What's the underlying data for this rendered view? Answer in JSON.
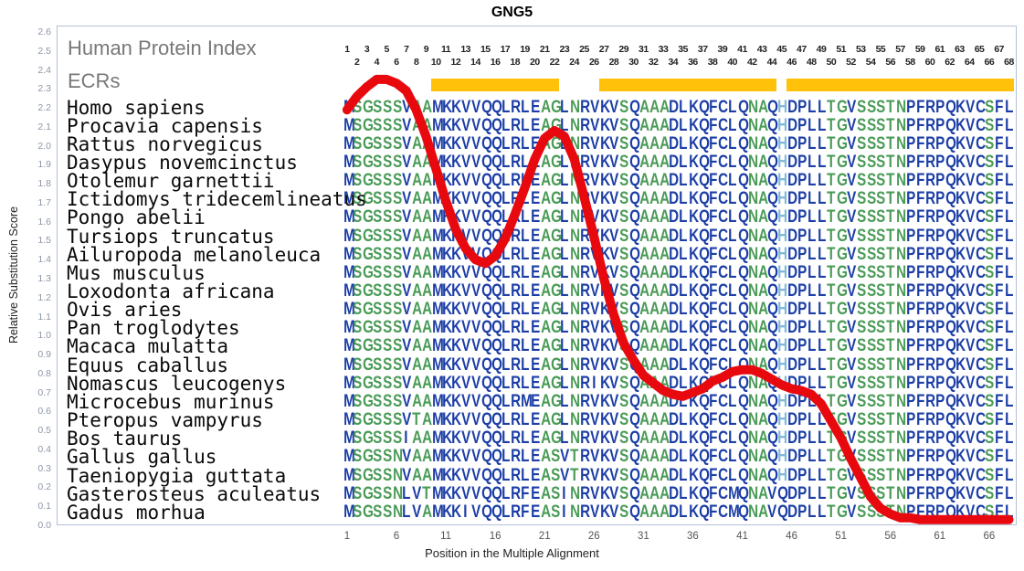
{
  "title": "GNG5",
  "axes": {
    "y_label": "Relative Substitution Score",
    "x_label": "Position in the Multiple Alignment",
    "y_min": 0.0,
    "y_max": 2.6,
    "y_tick_step": 0.1,
    "x_ticks": [
      1,
      6,
      11,
      16,
      21,
      26,
      31,
      36,
      41,
      46,
      51,
      56,
      61,
      66
    ]
  },
  "legend": {
    "hpi_label": "Human Protein Index",
    "ecr_label": "ECRs"
  },
  "ecr_regions": [
    [
      10,
      22
    ],
    [
      27,
      44
    ],
    [
      46,
      68
    ]
  ],
  "alignment": {
    "num_positions": 68,
    "species": [
      {
        "name": "Homo sapiens",
        "sequence": "MSGSSSVAAMKKVVQQLRLEAGLNRVKVSQAAADLKQFCLQNAQHDPLLTGVSSSTNPFRPQKVCSFL"
      },
      {
        "name": "Procavia capensis",
        "sequence": "MSGSSSVAAMKKVVQQLRLEAGLNRVKVSQAAADLKQFCLQNAQHDPLLTGVSSSTNPFRPQKVCSFL"
      },
      {
        "name": "Rattus norvegicus",
        "sequence": "MSGSSSVAAMKKVVQQLRLEAGLNRVKVSQAAADLKQFCLQNAQHDPLLTGVSSSTNPFRPQKVCSFL"
      },
      {
        "name": "Dasypus novemcinctus",
        "sequence": "MSGSSSVAAMKKVVQQLRLEAGLNRVKVSQAAADLKQFCLQNAQHDPLLTGVSSSTNPFRPQKVCSFL"
      },
      {
        "name": "Otolemur garnettii",
        "sequence": "MSGSSSVAAMKKVVQQLRLEAGLNRVKVSQAAADLKQFCLQNAQHDPLLTGVSSSTNPFRPQKVCSFL"
      },
      {
        "name": "Ictidomys tridecemlineatus",
        "sequence": "MSGSSSVAAMKKVVQQLRLEAGLNRVKVSQAAADLKQFCLQNAQHDPLLTGVSSSTNPFRPQKVCSFL"
      },
      {
        "name": "Pongo abelii",
        "sequence": "MSGSSSVAAMKKVVQQLRLEAGLNRVKVSQAAADLKQFCLQNAQHDPLLTGVSSSTNPFRPQKVCSFL"
      },
      {
        "name": "Tursiops truncatus",
        "sequence": "MSGSSSVAAMKKVVQQLRLEAGLNRVKVSQAAADLKQFCLQNAQHDPLLTGVSSSTNPFRPQKVCSFL"
      },
      {
        "name": "Ailuropoda melanoleuca",
        "sequence": "MSGSSSVAAMKKVVQQLRLEAGLNRVKVSQAAADLKQFCLQNAQHDPLLTGVSSSTNPFRPQKVCSFL"
      },
      {
        "name": "Mus musculus",
        "sequence": "MSGSSSVAAMKKVVQQLRLEAGLNRVKVSQAAADLKQFCLQNAQHDPLLTGVSSSTNPFRPQKVCSFL"
      },
      {
        "name": "Loxodonta africana",
        "sequence": "MSGSSSVAAMKKVVQQLRLEAGLNRVKVSQAAADLKQFCLQNAQHDPLLTGVSSSTNPFRPQKVCSFL"
      },
      {
        "name": "Ovis aries",
        "sequence": "MSGSSSVAAMKKVVQQLRLEAGLNRVKVSQAAADLKQFCLQNAQHDPLLTGVSSSTNPFRPQKVCSFL"
      },
      {
        "name": "Pan troglodytes",
        "sequence": "MSGSSSVAAMKKVVQQLRLEAGLNRVKVSQAAADLKQFCLQNAQHDPLLTGVSSSTNPFRPQKVCSFL"
      },
      {
        "name": "Macaca mulatta",
        "sequence": "MSGSSSVAAMKKVVQQLRLEAGLNRVKVSQAAADLKQFCLQNAQHDPLLTGVSSSTNPFRPQKVCSFL"
      },
      {
        "name": "Equus caballus",
        "sequence": "MSGSSSVAAMKKVVQQLRLEAGLNRVKVSQAAADLKQFCLQNAQHDPLLTGVSSSTNPFRPQKVCSFL"
      },
      {
        "name": "Nomascus leucogenys",
        "sequence": "MSGSSSVAAMKKVVQQLRLEAGLNRIKVSQAAADLKQFCLQNAQHDPLLTGVSSSTNPFRPQKVCSFL"
      },
      {
        "name": "Microcebus murinus",
        "sequence": "MSGSSSVAAMKKVVQQLRMEAGLNRVKVSQAAADLKQFCLQNAQHDPLLTGVSSSTNPFRPQKVCSFL"
      },
      {
        "name": "Pteropus vampyrus",
        "sequence": "MSGSSSVTAMKKVVQQLRLEAGLNRVKVSQAAADLKQFCLQNAQHDPLLTGVSSSTNPFRPQKVCSFL"
      },
      {
        "name": "Bos taurus",
        "sequence": "MSGSSSIAAMKKVVQQLRLEAGLNRVKVSQAAADLKQFCLQNAQHDPLLTGVSSSTNPFRPQKVCSFL"
      },
      {
        "name": "Gallus gallus",
        "sequence": "MSGSSNVAAMKKVVQQLRLEASVTRVKVSQAAADLKQFCLQNAQHDPLLTGVSSSTNPFRPQKVCSFL"
      },
      {
        "name": "Taeniopygia guttata",
        "sequence": "MSGSSNVAAMKKVVQQLRLEASVTRVKVSQAAADLKQFCLQNAQHDPLLTGVSSSTNPFRPQKVCSFL"
      },
      {
        "name": "Gasterosteus aculeatus",
        "sequence": "MSGSSNLVTMKKVVQQLRFEASINRVKVSQAAADLKQFCMQNAVQDPLLTGVSSSTNPFRPQKVCSFL"
      },
      {
        "name": "Gadus morhua",
        "sequence": "MSGSSNLVAMKKIVQQLRFEASINRVKVSQAAADLKQFCMQNAVQDPLLTGVSSSTNPFRPQKVCSFL"
      }
    ]
  },
  "chart_data": {
    "type": "line",
    "title": "GNG5",
    "xlabel": "Position in the Multiple Alignment",
    "ylabel": "Relative Substitution Score",
    "ylim": [
      0.0,
      2.6
    ],
    "xlim": [
      1,
      68
    ],
    "x_ticks": [
      1,
      6,
      11,
      16,
      21,
      26,
      31,
      36,
      41,
      46,
      51,
      56,
      61,
      66
    ],
    "grid": false,
    "series_name": "Relative substitution score",
    "x_start": 1,
    "values": [
      2.19,
      2.26,
      2.31,
      2.35,
      2.35,
      2.33,
      2.29,
      2.19,
      2.05,
      1.88,
      1.71,
      1.56,
      1.46,
      1.4,
      1.38,
      1.42,
      1.51,
      1.64,
      1.78,
      1.93,
      2.04,
      2.08,
      2.05,
      1.93,
      1.73,
      1.52,
      1.3,
      1.11,
      0.96,
      0.87,
      0.79,
      0.75,
      0.71,
      0.69,
      0.68,
      0.7,
      0.72,
      0.76,
      0.78,
      0.81,
      0.82,
      0.82,
      0.8,
      0.77,
      0.74,
      0.72,
      0.71,
      0.69,
      0.64,
      0.55,
      0.46,
      0.35,
      0.25,
      0.15,
      0.09,
      0.06,
      0.04,
      0.04,
      0.03,
      0.03,
      0.03,
      0.03,
      0.03,
      0.03,
      0.03,
      0.03,
      0.03,
      0.03
    ]
  },
  "colors": {
    "curve_red": "#e8090f",
    "ecr_yellow": "#ffc10a",
    "residue_blue": "#1c3ea6",
    "residue_green": "#4a9b57",
    "residue_teal": "#82b8d8",
    "green_residues": "AGSTN",
    "teal_residues": "H"
  }
}
